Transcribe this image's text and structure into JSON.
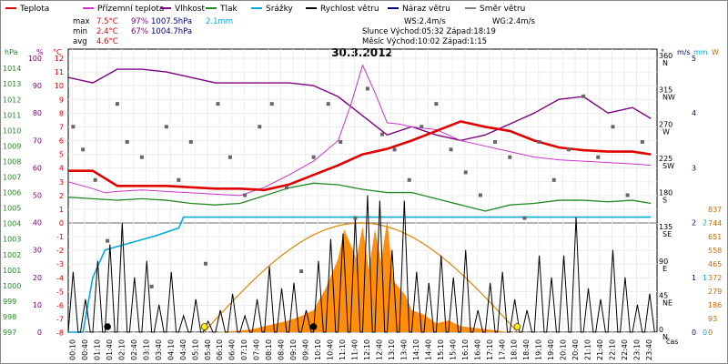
{
  "title": "30.3.2012",
  "legend": [
    {
      "label": "Teplota",
      "color": "#e00000"
    },
    {
      "label": "Přízemní teplota",
      "color": "#cc33cc"
    },
    {
      "label": "Vlhkost",
      "color": "#800080"
    },
    {
      "label": "Tlak",
      "color": "#228b22"
    },
    {
      "label": "Srážky",
      "color": "#00aadd"
    },
    {
      "label": "Rychlost větru",
      "color": "#000000"
    },
    {
      "label": "Náraz větru",
      "color": "#000080"
    },
    {
      "label": "Směr větru",
      "color": "#808080"
    }
  ],
  "stats": {
    "max": {
      "label": "max",
      "temp": "7.5°C",
      "hum": "97%",
      "press": "1007.5hPa",
      "rain": "2.1mm"
    },
    "min": {
      "label": "min",
      "temp": "2.4°C",
      "hum": "67%",
      "press": "1004.7hPa"
    },
    "avg": {
      "label": "avg",
      "temp": "4.6°C"
    },
    "ws": "WS:2.4m/s",
    "wg": "WG:2.4m/s",
    "sun": "Slunce Východ:05:32  Západ:18:19",
    "moon": "Měsíc  Východ:10:02  Západ:1:15"
  },
  "units": {
    "hpa": "hPa",
    "pct": "%",
    "degc": "°C",
    "deg": "°",
    "ms": "m/s",
    "mm": "mm",
    "w": "W"
  },
  "xlabel": "čas",
  "chart_data": {
    "type": "line",
    "x_ticks": [
      "00:10",
      "00:40",
      "01:10",
      "01:40",
      "02:10",
      "02:40",
      "03:10",
      "03:40",
      "04:10",
      "04:40",
      "05:10",
      "05:40",
      "06:10",
      "06:40",
      "07:10",
      "07:40",
      "08:10",
      "08:40",
      "09:10",
      "09:40",
      "10:10",
      "10:40",
      "11:10",
      "11:40",
      "12:10",
      "12:40",
      "13:10",
      "13:40",
      "14:10",
      "14:40",
      "15:10",
      "15:40",
      "16:10",
      "16:40",
      "17:10",
      "17:40",
      "18:10",
      "18:40",
      "19:10",
      "19:40",
      "20:10",
      "20:40",
      "21:10",
      "21:40",
      "22:10",
      "22:40",
      "23:10",
      "23:40"
    ],
    "axes": {
      "pressure": {
        "label": "hPa",
        "ticks": [
          "997",
          "998",
          "999",
          "1000",
          "1001",
          "1002",
          "1003",
          "1004",
          "1005",
          "1006",
          "1007",
          "1008",
          "1009",
          "1010",
          "1011",
          "1012",
          "1013",
          "1014"
        ]
      },
      "humidity": {
        "label": "%",
        "ticks": [
          "0",
          "10",
          "20",
          "30",
          "40",
          "50",
          "60",
          "70",
          "80",
          "90",
          "100"
        ]
      },
      "temperature": {
        "label": "°C",
        "ticks": [
          "-8",
          "-7",
          "-6",
          "-5",
          "-4",
          "-3",
          "-2",
          "-1",
          "0",
          "1",
          "2",
          "3",
          "4",
          "5",
          "6",
          "7",
          "8",
          "9",
          "10",
          "11",
          "12"
        ]
      },
      "direction": {
        "label": "°",
        "ticks": [
          "0",
          "45",
          "90",
          "135",
          "180",
          "225",
          "270",
          "315",
          "360"
        ],
        "compass": [
          "N",
          "NE",
          "E",
          "SE",
          "S",
          "SW",
          "W",
          "NW",
          "N"
        ]
      },
      "wind": {
        "label": "m/s",
        "ticks": [
          "0",
          "1",
          "2",
          "3",
          "4",
          "5"
        ]
      },
      "rain": {
        "label": "mm",
        "ticks": [
          "0",
          "1",
          "2"
        ]
      },
      "solar": {
        "label": "W",
        "ticks": [
          "0",
          "93",
          "186",
          "279",
          "372",
          "465",
          "558",
          "651",
          "744",
          "837"
        ]
      }
    },
    "series": [
      {
        "name": "Teplota",
        "unit": "°C",
        "color": "#e00000",
        "x": [
          0,
          1,
          2,
          3,
          4,
          5,
          6,
          7,
          8,
          9,
          10,
          11,
          12,
          13,
          14,
          15,
          16,
          17,
          18,
          19,
          20,
          21,
          22,
          23,
          23.75
        ],
        "y": [
          3.8,
          3.8,
          2.7,
          2.7,
          2.7,
          2.6,
          2.5,
          2.5,
          2.4,
          2.8,
          3.5,
          4.2,
          5.0,
          5.4,
          6.0,
          6.7,
          7.4,
          7.0,
          6.7,
          6.0,
          5.5,
          5.3,
          5.2,
          5.2,
          5.0
        ]
      },
      {
        "name": "Přízemní teplota",
        "unit": "°C",
        "color": "#cc33cc",
        "x": [
          0,
          1,
          1.5,
          2,
          3,
          4,
          5,
          6,
          7,
          8,
          9,
          10,
          11,
          11.5,
          12,
          12.5,
          13,
          13.5,
          14,
          15,
          16,
          17,
          18,
          19,
          20,
          21,
          22,
          23,
          23.75
        ],
        "y": [
          3.0,
          2.5,
          2.2,
          2.3,
          2.4,
          2.3,
          2.2,
          2.1,
          2.0,
          2.6,
          3.5,
          4.5,
          6.0,
          8.5,
          11.5,
          9.5,
          7.3,
          7.2,
          7.0,
          6.8,
          6.0,
          5.6,
          5.2,
          4.8,
          4.6,
          4.5,
          4.4,
          4.3,
          4.2
        ]
      },
      {
        "name": "Vlhkost",
        "unit": "%",
        "color": "#800080",
        "x": [
          0,
          1,
          2,
          3,
          4,
          5,
          6,
          7,
          8,
          9,
          10,
          11,
          12,
          13,
          14,
          15,
          16,
          17,
          18,
          19,
          20,
          21,
          22,
          23,
          23.75
        ],
        "y": [
          93,
          91,
          96,
          96,
          95,
          93,
          91,
          91,
          91,
          91,
          90,
          86,
          79,
          72,
          75,
          72,
          70,
          72,
          76,
          80,
          85,
          86,
          80,
          82,
          78
        ]
      },
      {
        "name": "Tlak",
        "unit": "hPa",
        "color": "#228b22",
        "x": [
          0,
          1,
          2,
          3,
          4,
          5,
          6,
          7,
          8,
          9,
          10,
          11,
          12,
          13,
          14,
          15,
          16,
          17,
          18,
          19,
          20,
          21,
          22,
          23,
          23.75
        ],
        "y": [
          1005.7,
          1005.6,
          1005.5,
          1005.6,
          1005.5,
          1005.3,
          1005.2,
          1005.3,
          1005.8,
          1006.3,
          1006.6,
          1006.5,
          1006.2,
          1006.0,
          1006.0,
          1005.6,
          1005.2,
          1004.8,
          1005.2,
          1005.3,
          1005.5,
          1005.5,
          1005.4,
          1005.5,
          1005.3
        ]
      },
      {
        "name": "Srážky",
        "unit": "mm",
        "color": "#00aadd",
        "x": [
          0,
          0.6,
          1.0,
          1.5,
          3.5,
          4.5,
          4.7,
          12,
          23.75
        ],
        "y": [
          0,
          0,
          1.0,
          1.5,
          1.75,
          1.9,
          2.1,
          2.1,
          2.1
        ]
      },
      {
        "name": "Rychlost větru",
        "unit": "m/s",
        "color": "#000000",
        "x": [
          0,
          0.5,
          1,
          1.5,
          2,
          2.5,
          3,
          3.5,
          4,
          4.5,
          5,
          5.5,
          6,
          6.5,
          7,
          7.5,
          8,
          8.5,
          9,
          9.5,
          10,
          10.5,
          11,
          11.5,
          12,
          12.5,
          13,
          13.5,
          14,
          14.5,
          15,
          15.5,
          16,
          16.5,
          17,
          17.5,
          18,
          18.5,
          19,
          19.5,
          20,
          20.5,
          21,
          21.5,
          22,
          22.5,
          23,
          23.5
        ],
        "y": [
          1.1,
          0.6,
          1.3,
          1.6,
          2.0,
          1.0,
          1.3,
          0.5,
          1.1,
          0.3,
          0.6,
          0.2,
          0.4,
          0.7,
          0.3,
          0.6,
          1.2,
          0.8,
          0.9,
          0.4,
          1.3,
          1.7,
          1.8,
          2.1,
          2.5,
          2.4,
          1.5,
          2.4,
          1.1,
          0.9,
          1.4,
          1.0,
          1.5,
          0.4,
          0.9,
          1.1,
          0.6,
          0.4,
          1.4,
          1.0,
          1.4,
          2.1,
          0.8,
          0.6,
          1.5,
          1.0,
          0.5,
          0.7
        ]
      },
      {
        "name": "Směr větru",
        "unit": "°",
        "color": "#808080",
        "x": [
          0.2,
          0.6,
          1.1,
          1.6,
          2.0,
          2.4,
          3.0,
          3.4,
          4.0,
          4.5,
          5.0,
          5.6,
          6.1,
          6.6,
          7.2,
          7.8,
          8.3,
          8.9,
          9.5,
          10.0,
          10.6,
          11.1,
          11.7,
          12.2,
          12.8,
          13.3,
          13.9,
          14.4,
          15.0,
          15.6,
          16.2,
          16.8,
          17.4,
          18.0,
          18.6,
          19.2,
          19.8,
          20.4,
          21.0,
          21.6,
          22.2,
          22.8,
          23.4
        ],
        "y": [
          270,
          240,
          200,
          120,
          300,
          250,
          230,
          60,
          270,
          200,
          250,
          90,
          300,
          230,
          180,
          270,
          300,
          190,
          80,
          230,
          300,
          250,
          150,
          320,
          260,
          240,
          200,
          270,
          300,
          240,
          210,
          180,
          250,
          230,
          150,
          250,
          200,
          240,
          310,
          230,
          270,
          180,
          250
        ]
      },
      {
        "name": "Solar",
        "unit": "W",
        "color": "#ff8800",
        "x": [
          5.5,
          6,
          6.5,
          7,
          7.5,
          8,
          8.5,
          9,
          9.5,
          10,
          10.5,
          11,
          11.25,
          11.5,
          11.75,
          12,
          12.25,
          12.5,
          12.75,
          13,
          13.25,
          13.5,
          13.75,
          14,
          14.5,
          15,
          15.5,
          16,
          16.5,
          17,
          17.5,
          18
        ],
        "y": [
          0,
          0,
          5,
          10,
          20,
          40,
          60,
          80,
          110,
          150,
          300,
          500,
          700,
          600,
          500,
          720,
          420,
          700,
          480,
          760,
          350,
          300,
          250,
          150,
          120,
          60,
          80,
          40,
          30,
          20,
          10,
          0
        ]
      },
      {
        "name": "Sun max",
        "unit": "W",
        "color": "#dd8800",
        "x": [
          5.53,
          18.32
        ],
        "y": [
          0,
          744
        ]
      }
    ],
    "markers": [
      {
        "x": 1.6,
        "color": "#000000"
      },
      {
        "x": 5.55,
        "color": "#ffee00"
      },
      {
        "x": 10.0,
        "color": "#000000"
      },
      {
        "x": 18.3,
        "color": "#ffee00"
      }
    ]
  }
}
